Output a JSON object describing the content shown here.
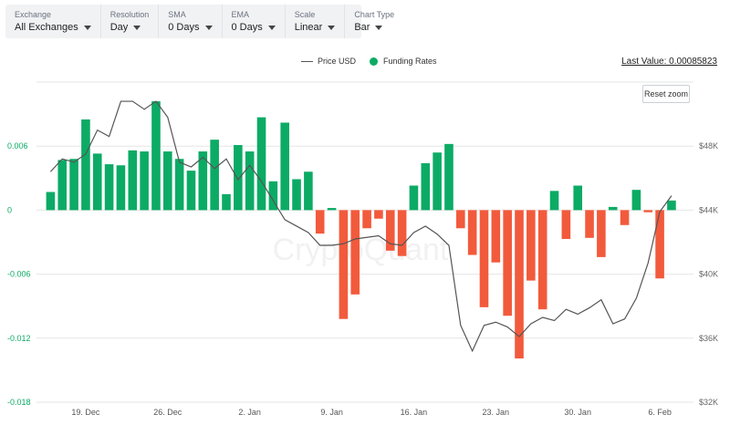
{
  "toolbar": {
    "exchange": {
      "label": "Exchange",
      "value": "All Exchanges"
    },
    "resolution": {
      "label": "Resolution",
      "value": "Day"
    },
    "sma": {
      "label": "SMA",
      "value": "0 Days"
    },
    "ema": {
      "label": "EMA",
      "value": "0 Days"
    },
    "scale": {
      "label": "Scale",
      "value": "Linear"
    },
    "chart_type": {
      "label": "Chart Type",
      "value": "Bar"
    }
  },
  "legend": {
    "price_label": "Price USD",
    "funding_label": "Funding Rates"
  },
  "last_value": "Last Value: 0.00085823",
  "reset_zoom": "Reset zoom",
  "watermark": "CryptoQuant",
  "colors": {
    "positive": "#0cab65",
    "negative": "#f25a3c",
    "price_line": "#555555",
    "left_axis_text": "#0cab65"
  },
  "chart_data": {
    "type": "bar",
    "title": "",
    "xlabel": "",
    "ylabel": "",
    "grid": true,
    "legend_position": "top-center",
    "x_ticks": [
      "19. Dec",
      "26. Dec",
      "2. Jan",
      "9. Jan",
      "16. Jan",
      "23. Jan",
      "30. Jan",
      "6. Feb"
    ],
    "y_left": {
      "ticks": [
        "0.006",
        "0",
        "-0.006",
        "-0.012",
        "-0.018"
      ],
      "range": [
        -0.018,
        0.012
      ]
    },
    "y_right": {
      "ticks": [
        "$48K",
        "$44K",
        "$40K",
        "$36K",
        "$32K"
      ],
      "range": [
        32000,
        52000
      ]
    },
    "series": [
      {
        "name": "Funding Rates",
        "values": [
          0.0017,
          0.0047,
          0.0048,
          0.0085,
          0.0053,
          0.0043,
          0.0042,
          0.0056,
          0.0055,
          0.0102,
          0.0055,
          0.0048,
          0.0037,
          0.0055,
          0.0066,
          0.0015,
          0.0061,
          0.0055,
          0.0087,
          0.0027,
          0.0082,
          0.0029,
          0.0036,
          -0.0022,
          0.0002,
          -0.0102,
          -0.0079,
          -0.0017,
          -0.0008,
          -0.0038,
          -0.0043,
          0.0023,
          0.0044,
          0.0054,
          0.0062,
          -0.0017,
          -0.0042,
          -0.0091,
          -0.0049,
          -0.0099,
          -0.0139,
          -0.0066,
          -0.0093,
          0.0018,
          -0.0027,
          0.0023,
          -0.0026,
          -0.0044,
          0.0003,
          -0.0014,
          0.0019,
          -0.0002,
          -0.0064,
          0.0009
        ]
      },
      {
        "name": "Price USD",
        "values": [
          46400,
          47200,
          47000,
          47500,
          49000,
          48600,
          50800,
          50800,
          50300,
          50800,
          49800,
          47000,
          46700,
          47300,
          46600,
          47200,
          45900,
          46800,
          45800,
          44600,
          43400,
          43000,
          42600,
          41800,
          41800,
          41900,
          42200,
          42300,
          42400,
          41900,
          41800,
          42600,
          43000,
          42500,
          41800,
          36800,
          35200,
          36800,
          37000,
          36700,
          36100,
          36900,
          37300,
          37100,
          37800,
          37500,
          37900,
          38400,
          36900,
          37200,
          38500,
          40700,
          43900,
          44900
        ]
      }
    ]
  }
}
